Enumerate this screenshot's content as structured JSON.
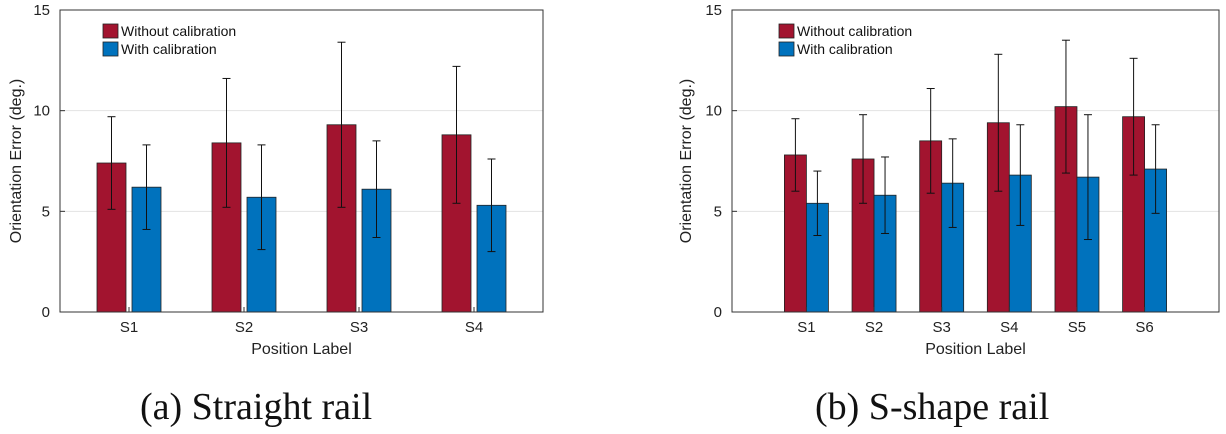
{
  "colors": {
    "series1": "#a2142f",
    "series2": "#0072bd"
  },
  "chart_data": [
    {
      "type": "bar",
      "caption": "(a) Straight rail",
      "xlabel": "Position Label",
      "ylabel": "Orientation Error (deg.)",
      "ylim": [
        0,
        15
      ],
      "yticks": [
        0,
        5,
        10,
        15
      ],
      "grid": true,
      "legend_position": "top-left",
      "categories": [
        "S1",
        "S2",
        "S3",
        "S4"
      ],
      "series": [
        {
          "name": "Without calibration",
          "values": [
            7.4,
            8.4,
            9.3,
            8.8
          ],
          "error": [
            2.3,
            3.2,
            4.1,
            3.4
          ]
        },
        {
          "name": "With calibration",
          "values": [
            6.2,
            5.7,
            6.1,
            5.3
          ],
          "error": [
            2.1,
            2.6,
            2.4,
            2.3
          ]
        }
      ]
    },
    {
      "type": "bar",
      "caption": "(b) S-shape rail",
      "xlabel": "Position Label",
      "ylabel": "Orientation Error (deg.)",
      "ylim": [
        0,
        15
      ],
      "yticks": [
        0,
        5,
        10,
        15
      ],
      "grid": true,
      "legend_position": "top-left",
      "categories": [
        "S1",
        "S2",
        "S3",
        "S4",
        "S5",
        "S6"
      ],
      "series": [
        {
          "name": "Without calibration",
          "values": [
            7.8,
            7.6,
            8.5,
            9.4,
            10.2,
            9.7
          ],
          "error": [
            1.8,
            2.2,
            2.6,
            3.4,
            3.3,
            2.9
          ]
        },
        {
          "name": "With calibration",
          "values": [
            5.4,
            5.8,
            6.4,
            6.8,
            6.7,
            7.1
          ],
          "error": [
            1.6,
            1.9,
            2.2,
            2.5,
            3.1,
            2.2
          ]
        }
      ]
    }
  ]
}
